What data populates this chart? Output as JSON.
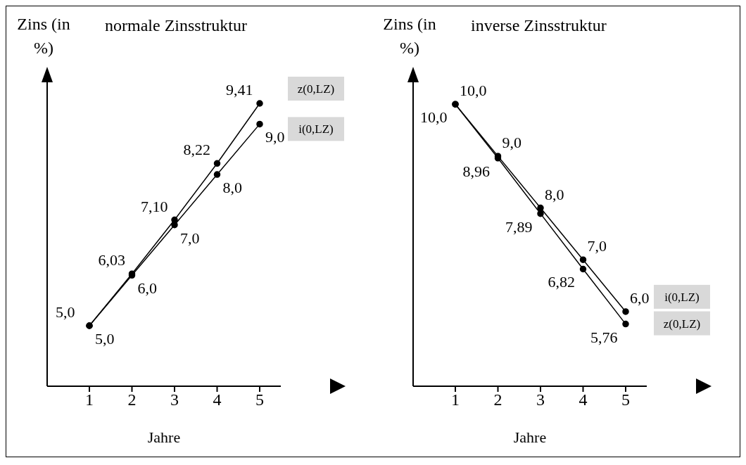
{
  "chart_data": [
    {
      "type": "line",
      "title": "normale Zinsstruktur",
      "xlabel": "Jahre",
      "ylabel": "Zins (in %)",
      "categories": [
        "1",
        "2",
        "3",
        "4",
        "5"
      ],
      "marker": "circle",
      "line_style": "solid",
      "series": [
        {
          "name": "z(0,LZ)",
          "color": "#000000",
          "values": [
            5.0,
            6.03,
            7.1,
            8.22,
            9.41
          ],
          "value_labels": [
            "5,0",
            "6,03",
            "7,10",
            "8,22",
            "9,41"
          ]
        },
        {
          "name": "i(0,LZ)",
          "color": "#000000",
          "values": [
            5.0,
            6.0,
            7.0,
            8.0,
            9.0
          ],
          "value_labels": [
            "5,0",
            "6,0",
            "7,0",
            "8,0",
            "9,0"
          ]
        }
      ]
    },
    {
      "type": "line",
      "title": "inverse Zinsstruktur",
      "xlabel": "Jahre",
      "ylabel": "Zins (in %)",
      "categories": [
        "1",
        "2",
        "3",
        "4",
        "5"
      ],
      "marker": "circle",
      "line_style": "solid",
      "series": [
        {
          "name": "i(0,LZ)",
          "color": "#000000",
          "values": [
            10.0,
            9.0,
            8.0,
            7.0,
            6.0
          ],
          "value_labels": [
            "10,0",
            "9,0",
            "8,0",
            "7,0",
            "6,0"
          ]
        },
        {
          "name": "z(0,LZ)",
          "color": "#000000",
          "values": [
            10.0,
            8.96,
            7.89,
            6.82,
            5.76
          ],
          "value_labels": [
            "10,0",
            "8,96",
            "7,89",
            "6,82",
            "5,76"
          ]
        }
      ]
    }
  ]
}
